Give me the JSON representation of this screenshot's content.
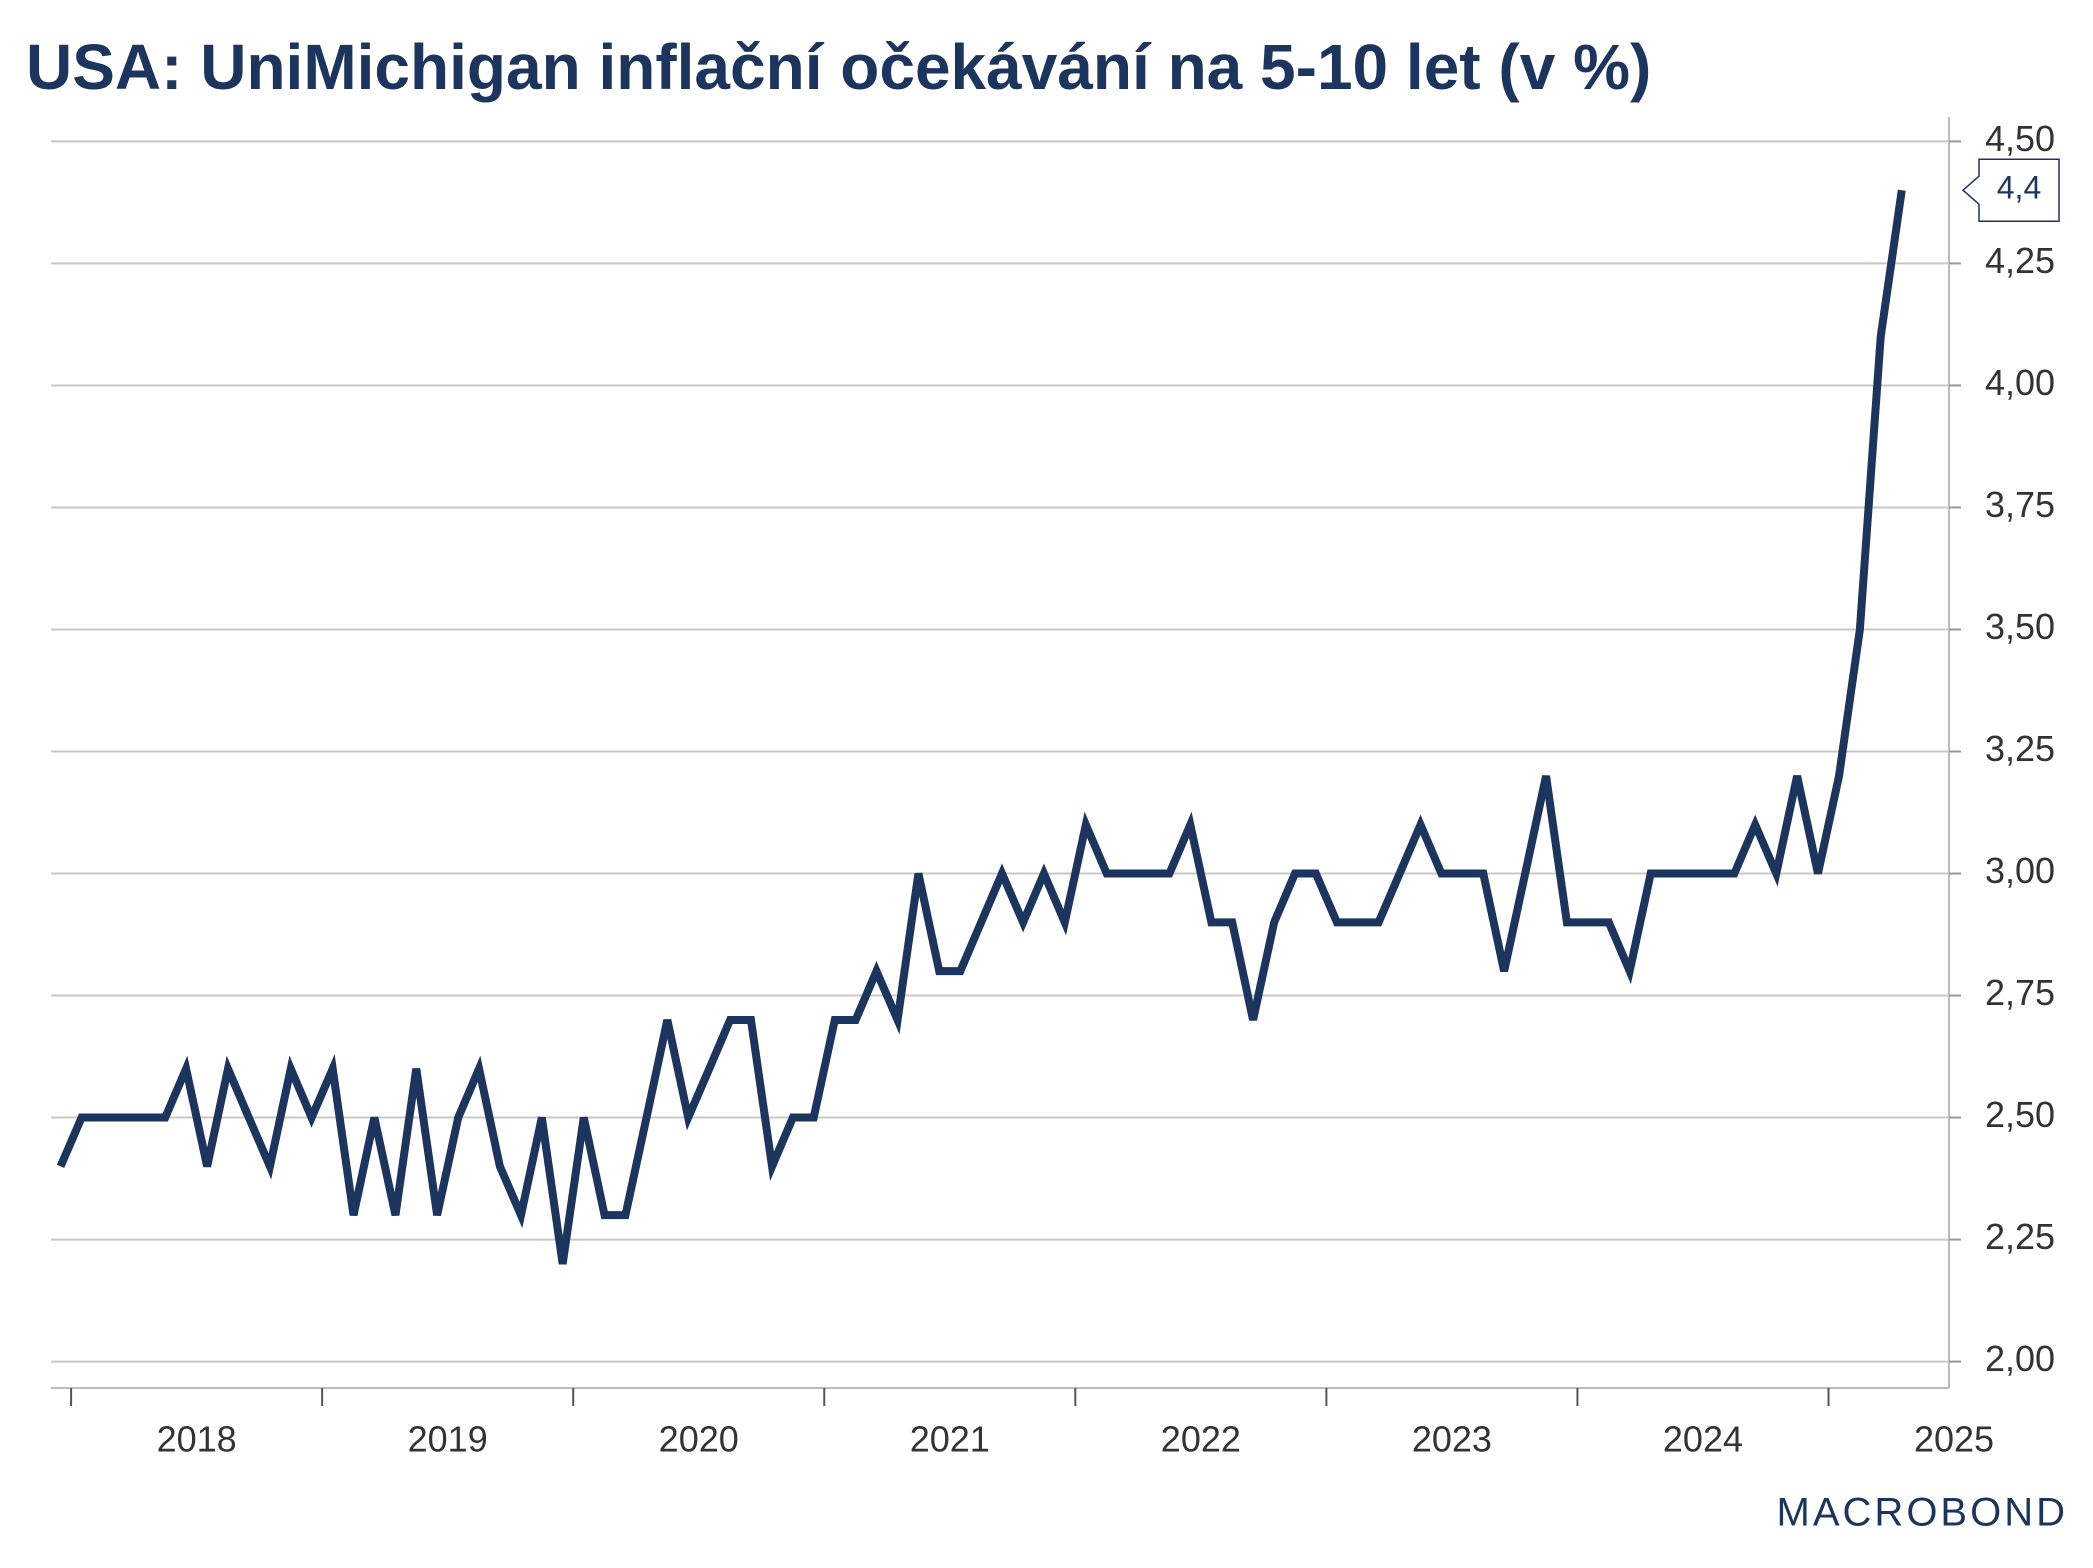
{
  "chart_data": {
    "type": "line",
    "title": "USA: UniMichigan inflační očekávání na 5-10 let (v %)",
    "source": "MACROBOND",
    "annotation": "4,4",
    "x": [
      2017.958,
      2018.042,
      2018.125,
      2018.208,
      2018.292,
      2018.375,
      2018.458,
      2018.542,
      2018.625,
      2018.708,
      2018.792,
      2018.875,
      2018.958,
      2019.042,
      2019.125,
      2019.208,
      2019.292,
      2019.375,
      2019.458,
      2019.542,
      2019.625,
      2019.708,
      2019.792,
      2019.875,
      2019.958,
      2020.042,
      2020.125,
      2020.208,
      2020.292,
      2020.375,
      2020.458,
      2020.542,
      2020.625,
      2020.708,
      2020.792,
      2020.875,
      2020.958,
      2021.042,
      2021.125,
      2021.208,
      2021.292,
      2021.375,
      2021.458,
      2021.542,
      2021.625,
      2021.708,
      2021.792,
      2021.875,
      2021.958,
      2022.042,
      2022.125,
      2022.208,
      2022.292,
      2022.375,
      2022.458,
      2022.542,
      2022.625,
      2022.708,
      2022.792,
      2022.875,
      2022.958,
      2023.042,
      2023.125,
      2023.208,
      2023.292,
      2023.375,
      2023.458,
      2023.542,
      2023.625,
      2023.708,
      2023.792,
      2023.875,
      2023.958,
      2024.042,
      2024.125,
      2024.208,
      2024.292,
      2024.375,
      2024.458,
      2024.542,
      2024.625,
      2024.708,
      2024.792,
      2024.875,
      2024.958,
      2025.042,
      2025.125,
      2025.208,
      2025.292
    ],
    "series": [
      {
        "color": "#1c355e",
        "values": [
          2.4,
          2.5,
          2.5,
          2.5,
          2.5,
          2.5,
          2.6,
          2.4,
          2.6,
          2.5,
          2.4,
          2.6,
          2.5,
          2.6,
          2.3,
          2.5,
          2.3,
          2.6,
          2.3,
          2.5,
          2.6,
          2.4,
          2.3,
          2.5,
          2.2,
          2.5,
          2.3,
          2.3,
          2.5,
          2.7,
          2.5,
          2.6,
          2.7,
          2.7,
          2.4,
          2.5,
          2.5,
          2.7,
          2.7,
          2.8,
          2.7,
          3.0,
          2.8,
          2.8,
          2.9,
          3.0,
          2.9,
          3.0,
          2.9,
          3.1,
          3.0,
          3.0,
          3.0,
          3.0,
          3.1,
          2.9,
          2.9,
          2.7,
          2.9,
          3.0,
          3.0,
          2.9,
          2.9,
          2.9,
          3.0,
          3.1,
          3.0,
          3.0,
          3.0,
          2.8,
          3.0,
          3.2,
          2.9,
          2.9,
          2.9,
          2.8,
          3.0,
          3.0,
          3.0,
          3.0,
          3.0,
          3.1,
          3.0,
          3.2,
          3.0,
          3.2,
          3.5,
          4.1,
          4.4
        ]
      }
    ],
    "xlim": [
      2017.92,
      2025.48
    ],
    "xticks": [
      2018,
      2019,
      2020,
      2021,
      2022,
      2023,
      2024,
      2025
    ],
    "ylim": [
      1.95,
      4.55
    ],
    "yticks": [
      {
        "value": 2.0,
        "label": "2,00"
      },
      {
        "value": 2.25,
        "label": "2,25"
      },
      {
        "value": 2.5,
        "label": "2,50"
      },
      {
        "value": 2.75,
        "label": "2,75"
      },
      {
        "value": 3.0,
        "label": "3,00"
      },
      {
        "value": 3.25,
        "label": "3,25"
      },
      {
        "value": 3.5,
        "label": "3,50"
      },
      {
        "value": 3.75,
        "label": "3,75"
      },
      {
        "value": 4.0,
        "label": "4,00"
      },
      {
        "value": 4.25,
        "label": "4,25"
      },
      {
        "value": 4.5,
        "label": "4,50"
      }
    ],
    "grid": true
  }
}
